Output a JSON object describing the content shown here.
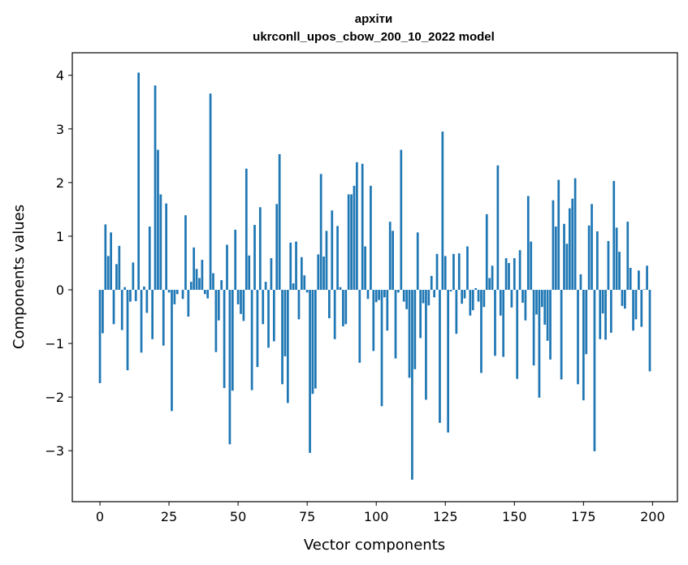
{
  "chart_data": {
    "type": "bar",
    "title_line1": "архіти",
    "title_line2": "ukrconll_upos_cbow_200_10_2022 model",
    "xlabel": "Vector components",
    "ylabel": "Components values",
    "xlim": [
      -10,
      209
    ],
    "ylim": [
      -3.95,
      4.42
    ],
    "xticks": [
      0,
      25,
      50,
      75,
      100,
      125,
      150,
      175,
      200
    ],
    "xtick_labels": [
      "0",
      "25",
      "50",
      "75",
      "100",
      "125",
      "150",
      "175",
      "200"
    ],
    "yticks": [
      -3,
      -2,
      -1,
      0,
      1,
      2,
      3,
      4
    ],
    "ytick_labels": [
      "−3",
      "−2",
      "−1",
      "0",
      "1",
      "2",
      "3",
      "4"
    ],
    "bar_color": "#1f77b4",
    "grid": false,
    "values": [
      -1.74,
      -0.81,
      1.22,
      0.63,
      1.07,
      -0.64,
      0.48,
      0.82,
      -0.75,
      0.05,
      -1.5,
      -0.22,
      0.51,
      -0.21,
      4.05,
      -1.17,
      0.06,
      -0.43,
      1.18,
      -0.92,
      3.81,
      2.61,
      1.78,
      -1.04,
      1.61,
      -0.05,
      -2.26,
      -0.27,
      -0.08,
      0.0,
      -0.17,
      1.39,
      -0.5,
      0.15,
      0.79,
      0.39,
      0.22,
      0.56,
      -0.08,
      -0.16,
      3.66,
      0.31,
      -1.16,
      -0.57,
      0.18,
      -1.83,
      0.84,
      -2.88,
      -1.88,
      1.12,
      -0.27,
      -0.45,
      -0.58,
      2.26,
      0.64,
      -1.87,
      1.21,
      -1.44,
      1.54,
      -0.64,
      0.15,
      -1.08,
      0.59,
      -0.96,
      1.6,
      2.53,
      -1.76,
      -1.24,
      -2.11,
      0.88,
      0.12,
      0.9,
      -0.55,
      0.61,
      0.27,
      -0.05,
      -3.04,
      -1.94,
      -1.84,
      0.66,
      2.16,
      0.62,
      1.1,
      -0.53,
      1.48,
      -0.92,
      1.19,
      0.05,
      -0.68,
      -0.64,
      1.78,
      1.78,
      1.94,
      2.38,
      -1.36,
      2.35,
      0.81,
      -0.17,
      1.94,
      -1.14,
      -0.23,
      -0.19,
      -2.17,
      -0.14,
      -0.76,
      1.27,
      1.1,
      -1.28,
      -0.05,
      2.61,
      -0.22,
      -0.36,
      -1.64,
      -3.54,
      -1.48,
      1.07,
      -0.9,
      -0.25,
      -2.05,
      -0.29,
      0.26,
      -0.14,
      0.67,
      -2.48,
      2.95,
      0.63,
      -2.66,
      -0.03,
      0.67,
      -0.82,
      0.68,
      -0.26,
      -0.16,
      0.81,
      -0.48,
      -0.38,
      0.03,
      -0.22,
      -1.55,
      -0.32,
      1.41,
      0.22,
      0.45,
      -1.23,
      2.32,
      -0.48,
      -1.25,
      0.59,
      0.5,
      -0.33,
      0.59,
      -1.66,
      0.74,
      -0.24,
      -0.57,
      1.75,
      0.9,
      -1.41,
      -0.46,
      -2.01,
      -0.32,
      -0.65,
      -0.95,
      -1.3,
      1.67,
      1.18,
      2.05,
      -1.67,
      1.23,
      0.86,
      1.52,
      1.7,
      2.08,
      -1.76,
      0.29,
      -2.06,
      -1.2,
      1.2,
      1.6,
      -3.01,
      1.09,
      -0.92,
      -0.44,
      -0.93,
      0.91,
      -0.8,
      2.03,
      1.16,
      0.71,
      -0.3,
      -0.35,
      1.27,
      0.41,
      -0.76,
      -0.55,
      0.36,
      -0.69,
      0.01,
      0.45,
      -1.52
    ]
  }
}
